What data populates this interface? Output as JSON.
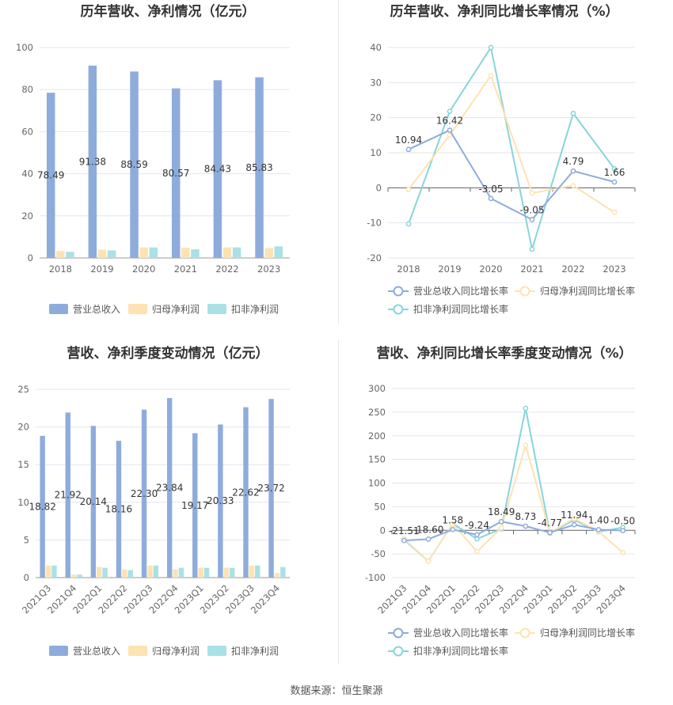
{
  "source_label": "数据来源：恒生聚源",
  "colors": {
    "revenue": "#8eacdb",
    "np": "#fde3b2",
    "dnp": "#a9e1e6",
    "rev_line": "#8eacdb",
    "np_line": "#fde3b2",
    "dnp_line": "#87d5da"
  },
  "chart_data": [
    {
      "type": "bar",
      "title": "历年营收、净利情况（亿元）",
      "categories": [
        "2018",
        "2019",
        "2020",
        "2021",
        "2022",
        "2023"
      ],
      "ylim": [
        0,
        100
      ],
      "yticks": [
        0,
        20,
        40,
        60,
        80,
        100
      ],
      "series": [
        {
          "name": "营业总收入",
          "values": [
            78.49,
            91.38,
            88.59,
            80.57,
            84.43,
            85.83
          ],
          "labels": [
            "78.49",
            "91.38",
            "88.59",
            "80.57",
            "84.43",
            "85.83"
          ]
        },
        {
          "name": "归母净利润",
          "values": [
            3.3,
            3.9,
            5.0,
            4.9,
            5.0,
            4.7
          ]
        },
        {
          "name": "扣非净利润",
          "values": [
            2.9,
            3.6,
            5.0,
            4.1,
            5.0,
            5.5
          ]
        }
      ],
      "legend": "bottom"
    },
    {
      "type": "line",
      "title": "历年营收、净利同比增长率情况（%）",
      "categories": [
        "2018",
        "2019",
        "2020",
        "2021",
        "2022",
        "2023"
      ],
      "ylim": [
        -20,
        40
      ],
      "yticks": [
        -20,
        -10,
        0,
        10,
        20,
        30,
        40
      ],
      "series": [
        {
          "name": "营业总收入同比增长率",
          "values": [
            10.94,
            16.42,
            -3.05,
            -9.05,
            4.79,
            1.66
          ],
          "labels": [
            "10.94",
            "16.42",
            "-3.05",
            "-9.05",
            "4.79",
            "1.66"
          ]
        },
        {
          "name": "归母净利润同比增长率",
          "values": [
            -0.5,
            15.0,
            32.0,
            -1.5,
            0.6,
            -7.0
          ]
        },
        {
          "name": "扣非净利润同比增长率",
          "values": [
            -10.3,
            21.8,
            40.0,
            -17.5,
            21.2,
            5.4
          ]
        }
      ],
      "legend": "bottom"
    },
    {
      "type": "bar",
      "title": "营收、净利季度变动情况（亿元）",
      "categories": [
        "2021Q3",
        "2021Q4",
        "2022Q1",
        "2022Q2",
        "2022Q3",
        "2022Q4",
        "2023Q1",
        "2023Q2",
        "2023Q3",
        "2023Q4"
      ],
      "ylim": [
        0,
        25
      ],
      "yticks": [
        0,
        5,
        10,
        15,
        20,
        25
      ],
      "series": [
        {
          "name": "营业总收入",
          "values": [
            18.82,
            21.92,
            20.14,
            18.16,
            22.3,
            23.84,
            19.17,
            20.33,
            22.62,
            23.72
          ],
          "labels": [
            "18.82",
            "21.92",
            "20.14",
            "18.16",
            "22.30",
            "23.84",
            "19.17",
            "20.33",
            "22.62",
            "23.72"
          ]
        },
        {
          "name": "归母净利润",
          "values": [
            1.6,
            0.4,
            1.4,
            1.1,
            1.6,
            1.1,
            1.3,
            1.3,
            1.6,
            0.6
          ]
        },
        {
          "name": "扣非净利润",
          "values": [
            1.6,
            0.4,
            1.3,
            1.0,
            1.6,
            1.3,
            1.3,
            1.3,
            1.6,
            1.4
          ]
        }
      ],
      "legend": "bottom"
    },
    {
      "type": "line",
      "title": "营收、净利同比增长率季度变动情况（%）",
      "categories": [
        "2021Q3",
        "2021Q4",
        "2022Q1",
        "2022Q2",
        "2022Q3",
        "2022Q4",
        "2023Q1",
        "2023Q2",
        "2023Q3",
        "2023Q4"
      ],
      "ylim": [
        -100,
        300
      ],
      "yticks": [
        -100,
        -50,
        0,
        50,
        100,
        150,
        200,
        250,
        300
      ],
      "series": [
        {
          "name": "营业总收入同比增长率",
          "values": [
            -21.51,
            -18.6,
            1.58,
            -9.24,
            18.49,
            8.73,
            -4.77,
            11.94,
            1.4,
            -0.5
          ],
          "labels": [
            "-21.51",
            "-18.60",
            "1.58",
            "-9.24",
            "18.49",
            "8.73",
            "-4.77",
            "11.94",
            "1.40",
            "-0.50"
          ]
        },
        {
          "name": "归母净利润同比增长率",
          "values": [
            -18.0,
            -65.0,
            14.0,
            -45.0,
            5.0,
            180.0,
            -5.0,
            25.0,
            -2.0,
            -47.0
          ]
        },
        {
          "name": "扣非净利润同比增长率",
          "values": [
            -20.0,
            -65.0,
            14.0,
            -18.0,
            3.0,
            258.0,
            -6.0,
            22.0,
            -3.0,
            6.0
          ]
        }
      ],
      "legend": "bottom"
    }
  ]
}
